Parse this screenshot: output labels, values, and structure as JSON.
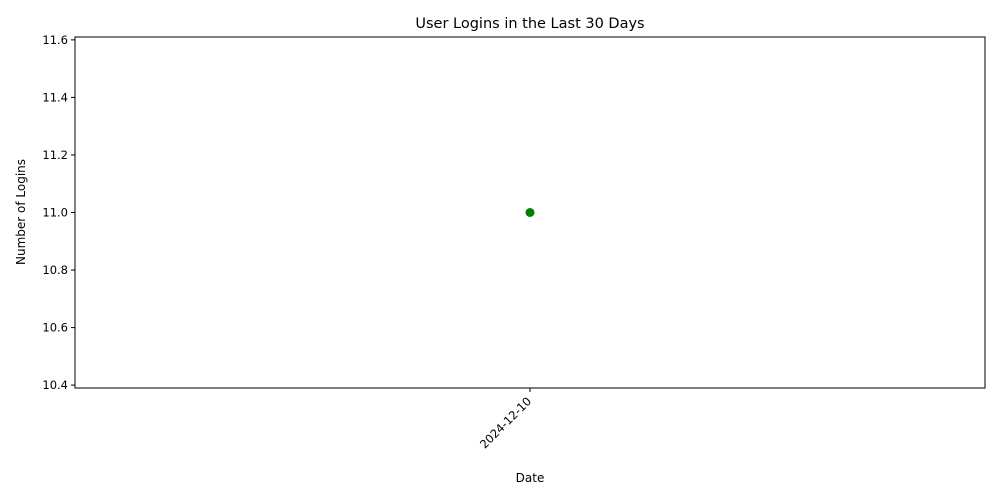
{
  "chart_data": {
    "type": "line",
    "title": "User Logins in the Last 30 Days",
    "xlabel": "Date",
    "ylabel": "Number of Logins",
    "categories": [
      "2024-12-10"
    ],
    "series": [
      {
        "values": [
          11
        ],
        "color": "#008000",
        "marker": "circle"
      }
    ],
    "ylim": [
      10.39,
      11.61
    ],
    "yticks": [
      "10.4",
      "10.6",
      "10.8",
      "11.0",
      "11.2",
      "11.4",
      "11.6"
    ],
    "grid": false,
    "legend": "none"
  }
}
